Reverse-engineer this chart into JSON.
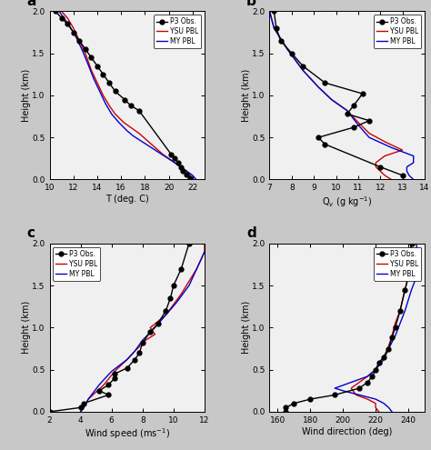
{
  "panel_a": {
    "title": "a",
    "xlabel": "T (deg. C)",
    "ylabel": "Height (km)",
    "xlim": [
      10,
      23
    ],
    "xticks": [
      10,
      12,
      14,
      16,
      18,
      20,
      22
    ],
    "ylim": [
      0,
      2.0
    ],
    "yticks": [
      0.0,
      0.5,
      1.0,
      1.5,
      2.0
    ],
    "obs_x": [
      21.8,
      21.5,
      21.2,
      21.0,
      20.8,
      20.5,
      20.2,
      17.5,
      16.8,
      16.3,
      15.5,
      15.0,
      14.5,
      14.0,
      13.5,
      13.0,
      12.5,
      12.0,
      11.5,
      11.0,
      10.5
    ],
    "obs_y": [
      0.02,
      0.06,
      0.1,
      0.15,
      0.2,
      0.25,
      0.3,
      0.82,
      0.88,
      0.95,
      1.05,
      1.15,
      1.25,
      1.35,
      1.45,
      1.55,
      1.65,
      1.75,
      1.85,
      1.92,
      2.0
    ],
    "ysu_x": [
      22.0,
      21.8,
      21.5,
      21.0,
      20.5,
      19.5,
      17.5,
      16.8,
      16.2,
      15.5,
      15.0,
      14.5,
      14.0,
      13.5,
      13.0,
      12.5,
      12.0,
      11.5,
      11.0
    ],
    "ysu_y": [
      0.0,
      0.05,
      0.1,
      0.15,
      0.2,
      0.3,
      0.55,
      0.62,
      0.68,
      0.78,
      0.88,
      1.0,
      1.15,
      1.3,
      1.5,
      1.65,
      1.8,
      1.92,
      2.0
    ],
    "my_x": [
      22.3,
      22.0,
      21.5,
      21.0,
      20.5,
      17.0,
      16.5,
      15.8,
      15.2,
      14.7,
      14.2,
      13.7,
      13.2,
      12.7,
      12.2,
      11.7,
      11.2,
      10.8
    ],
    "my_y": [
      0.0,
      0.05,
      0.1,
      0.15,
      0.2,
      0.52,
      0.58,
      0.68,
      0.78,
      0.9,
      1.05,
      1.2,
      1.38,
      1.55,
      1.7,
      1.82,
      1.92,
      2.0
    ]
  },
  "panel_b": {
    "title": "b",
    "xlabel": "Q$_v$ (g kg$^{-1}$)",
    "ylabel": "Height (km)",
    "xlim": [
      7,
      14
    ],
    "xticks": [
      7,
      8,
      9,
      10,
      11,
      12,
      13,
      14
    ],
    "ylim": [
      0,
      2.0
    ],
    "yticks": [
      0.0,
      0.5,
      1.0,
      1.5,
      2.0
    ],
    "obs_x": [
      13.0,
      12.0,
      9.5,
      9.2,
      10.8,
      11.5,
      10.5,
      10.8,
      11.2,
      9.5,
      8.5,
      8.0,
      7.5,
      7.3,
      7.2
    ],
    "obs_y": [
      0.05,
      0.15,
      0.42,
      0.5,
      0.62,
      0.7,
      0.78,
      0.88,
      1.02,
      1.15,
      1.35,
      1.5,
      1.65,
      1.8,
      2.0
    ],
    "ysu_x": [
      12.5,
      12.2,
      12.0,
      11.8,
      11.8,
      12.2,
      13.0,
      12.2,
      11.5,
      11.0,
      10.5,
      9.8,
      9.2,
      8.5,
      7.8,
      7.2,
      7.0
    ],
    "ysu_y": [
      0.0,
      0.05,
      0.1,
      0.15,
      0.2,
      0.28,
      0.35,
      0.45,
      0.55,
      0.68,
      0.82,
      0.95,
      1.1,
      1.3,
      1.55,
      1.8,
      2.0
    ],
    "my_x": [
      13.5,
      13.3,
      13.2,
      13.2,
      13.5,
      13.5,
      12.5,
      11.5,
      11.0,
      10.5,
      9.8,
      9.2,
      8.5,
      7.8,
      7.2,
      7.0
    ],
    "my_y": [
      0.0,
      0.05,
      0.1,
      0.15,
      0.2,
      0.28,
      0.38,
      0.5,
      0.65,
      0.82,
      0.95,
      1.1,
      1.3,
      1.55,
      1.8,
      2.0
    ]
  },
  "panel_c": {
    "title": "c",
    "xlabel": "Wind speed (ms$^{-1}$)",
    "ylabel": "Height (km)",
    "xlim": [
      2,
      12
    ],
    "xticks": [
      2,
      4,
      6,
      8,
      10,
      12
    ],
    "ylim": [
      0,
      2.0
    ],
    "yticks": [
      0.0,
      0.5,
      1.0,
      1.5,
      2.0
    ],
    "obs_x": [
      2.0,
      4.0,
      4.2,
      5.8,
      5.2,
      5.8,
      6.2,
      6.2,
      7.0,
      7.5,
      7.8,
      8.0,
      8.5,
      9.0,
      9.5,
      9.8,
      10.0,
      10.5,
      11.0
    ],
    "obs_y": [
      0.0,
      0.05,
      0.1,
      0.2,
      0.25,
      0.32,
      0.4,
      0.45,
      0.52,
      0.62,
      0.7,
      0.82,
      0.95,
      1.05,
      1.2,
      1.35,
      1.5,
      1.7,
      2.0
    ],
    "ysu_x": [
      4.0,
      4.2,
      4.5,
      5.5,
      6.2,
      7.0,
      7.5,
      8.2,
      8.8,
      8.5,
      9.5,
      10.5,
      11.5,
      12.0,
      12.0
    ],
    "ysu_y": [
      0.0,
      0.05,
      0.15,
      0.32,
      0.48,
      0.62,
      0.72,
      0.85,
      0.92,
      1.0,
      1.15,
      1.4,
      1.7,
      1.9,
      2.0
    ],
    "my_x": [
      4.0,
      4.2,
      4.5,
      5.2,
      6.0,
      7.0,
      7.5,
      8.0,
      8.8,
      9.5,
      10.2,
      11.0,
      11.5,
      12.0,
      12.2
    ],
    "my_y": [
      0.0,
      0.05,
      0.15,
      0.32,
      0.48,
      0.62,
      0.72,
      0.85,
      1.0,
      1.15,
      1.3,
      1.5,
      1.7,
      1.9,
      2.0
    ]
  },
  "panel_d": {
    "title": "d",
    "xlabel": "Wind direction (deg)",
    "ylabel": "Height (km)",
    "xlim": [
      155,
      250
    ],
    "xticks": [
      160,
      180,
      200,
      220,
      240
    ],
    "ylim": [
      0,
      2.0
    ],
    "yticks": [
      0.0,
      0.5,
      1.0,
      1.5,
      2.0
    ],
    "obs_x": [
      165,
      165,
      170,
      180,
      195,
      210,
      215,
      218,
      220,
      222,
      225,
      228,
      230,
      232,
      235,
      238,
      240,
      240,
      242
    ],
    "obs_y": [
      0.0,
      0.05,
      0.1,
      0.15,
      0.2,
      0.28,
      0.35,
      0.42,
      0.5,
      0.58,
      0.65,
      0.75,
      0.88,
      1.0,
      1.2,
      1.45,
      1.6,
      1.8,
      2.0
    ],
    "ysu_x": [
      222,
      220,
      220,
      215,
      208,
      205,
      210,
      215,
      220,
      222,
      225,
      228,
      230,
      232,
      235,
      238,
      240,
      242,
      242
    ],
    "ysu_y": [
      0.0,
      0.05,
      0.1,
      0.15,
      0.2,
      0.28,
      0.35,
      0.42,
      0.5,
      0.58,
      0.65,
      0.78,
      0.9,
      1.05,
      1.2,
      1.45,
      1.6,
      1.8,
      2.0
    ],
    "my_x": [
      230,
      228,
      225,
      220,
      210,
      200,
      195,
      205,
      215,
      220,
      225,
      228,
      232,
      235,
      238,
      242,
      245,
      246,
      245
    ],
    "my_y": [
      0.0,
      0.05,
      0.1,
      0.15,
      0.2,
      0.25,
      0.28,
      0.35,
      0.42,
      0.5,
      0.62,
      0.75,
      0.9,
      1.05,
      1.2,
      1.45,
      1.6,
      1.8,
      2.0
    ]
  },
  "obs_color": "#000000",
  "ysu_color": "#cc0000",
  "my_color": "#0000cc",
  "linewidth": 1.0,
  "marker": "o",
  "markersize": 3.5,
  "bg_color": "#f0f0f0",
  "legend_labels": [
    "P3 Obs.",
    "YSU PBL",
    "MY PBL"
  ]
}
